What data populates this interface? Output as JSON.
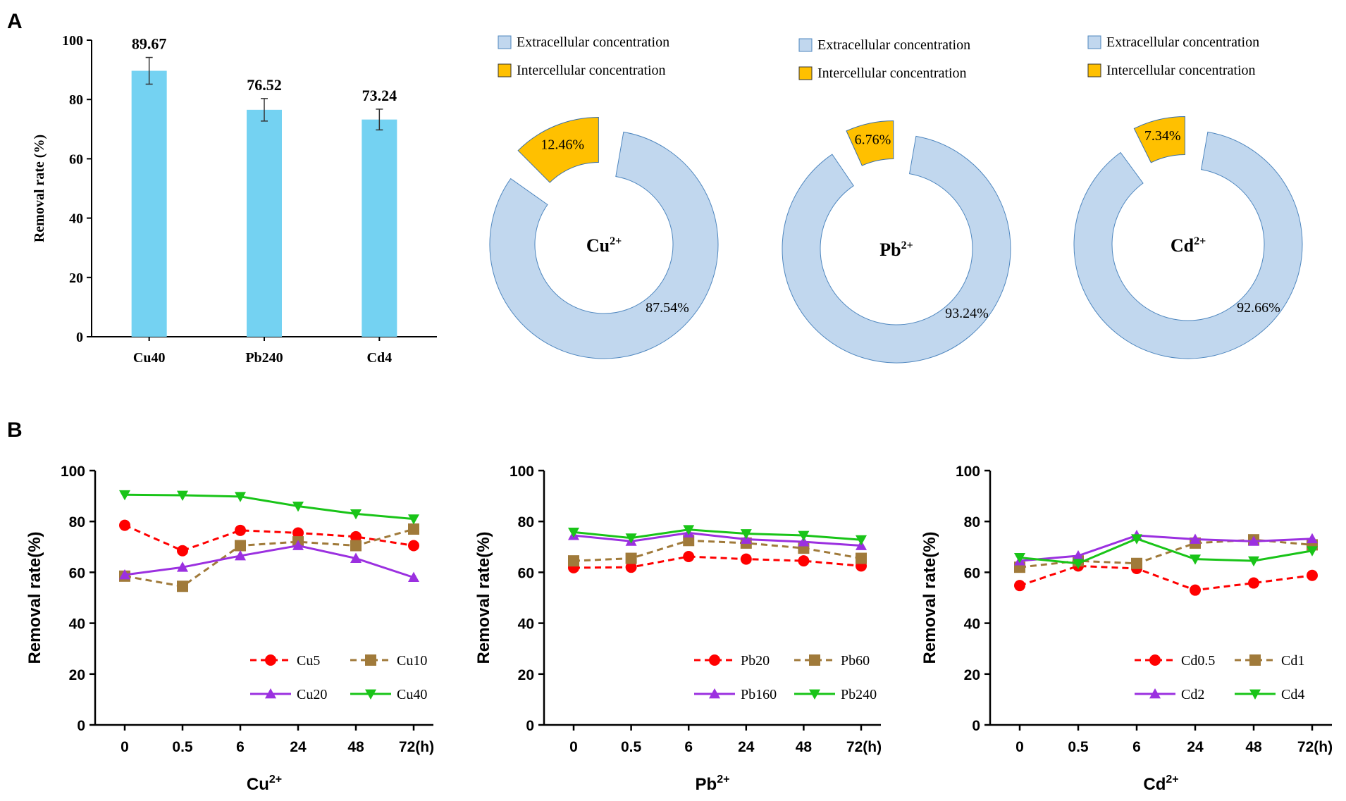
{
  "panel_labels": {
    "a": "A",
    "b": "B"
  },
  "colors": {
    "bar": "#74d2f2",
    "extra": "#c1d7ee",
    "extra_stroke": "#4f87bf",
    "intra": "#ffc000",
    "intra_stroke": "#3a6fa8",
    "red": "#ff0000",
    "brown": "#a07a3a",
    "purple": "#9b30e0",
    "green": "#19c418"
  },
  "chart_data": [
    {
      "id": "bar",
      "type": "bar",
      "categories": [
        "Cu40",
        "Pb240",
        "Cd4"
      ],
      "values": [
        89.67,
        76.52,
        73.24
      ],
      "value_labels": [
        "89.67",
        "76.52",
        "73.24"
      ],
      "errors": [
        4.5,
        3.8,
        3.5
      ],
      "ylabel": "Removal rate (%)",
      "ylim": [
        0,
        100
      ],
      "yticks": [
        "0",
        "20",
        "40",
        "60",
        "80",
        "100"
      ]
    },
    {
      "id": "pie_cu",
      "type": "pie",
      "center_label": "Cu",
      "center_sup": "2+",
      "legend": [
        "Extracellular concentration",
        "Intercellular concentration"
      ],
      "slices": [
        {
          "name": "Extracellular concentration",
          "value": 87.54,
          "label": "87.54%"
        },
        {
          "name": "Intercellular concentration",
          "value": 12.46,
          "label": "12.46%"
        }
      ]
    },
    {
      "id": "pie_pb",
      "type": "pie",
      "center_label": "Pb",
      "center_sup": "2+",
      "legend": [
        "Extracellular concentration",
        "Intercellular concentration"
      ],
      "slices": [
        {
          "name": "Extracellular concentration",
          "value": 93.24,
          "label": "93.24%"
        },
        {
          "name": "Intercellular concentration",
          "value": 6.76,
          "label": "6.76%"
        }
      ]
    },
    {
      "id": "pie_cd",
      "type": "pie",
      "center_label": "Cd",
      "center_sup": "2+",
      "legend": [
        "Extracellular concentration",
        "Intercellular concentration"
      ],
      "slices": [
        {
          "name": "Extracellular concentration",
          "value": 92.66,
          "label": "92.66%"
        },
        {
          "name": "Intercellular concentration",
          "value": 7.34,
          "label": "7.34%"
        }
      ]
    },
    {
      "id": "line_cu",
      "type": "line",
      "categories": [
        "0",
        "0.5",
        "6",
        "24",
        "48",
        "72"
      ],
      "x_unit": "(h)",
      "xlabel": "Cu",
      "xlabel_sup": "2+",
      "ylabel": "Removal rate(%)",
      "ylim": [
        0,
        100
      ],
      "yticks": [
        "0",
        "20",
        "40",
        "60",
        "80",
        "100"
      ],
      "series": [
        {
          "name": "Cu5",
          "values": [
            78.5,
            68.5,
            76.5,
            75.5,
            74,
            70.5
          ],
          "color": "#ff0000",
          "marker": "circle",
          "dashed": true
        },
        {
          "name": "Cu10",
          "values": [
            58.5,
            54.5,
            70.5,
            72,
            70.5,
            77
          ],
          "color": "#a07a3a",
          "marker": "square",
          "dashed": true
        },
        {
          "name": "Cu20",
          "values": [
            59,
            62,
            66.5,
            70.5,
            65.5,
            58
          ],
          "color": "#9b30e0",
          "marker": "triangle-up",
          "dashed": false
        },
        {
          "name": "Cu40",
          "values": [
            90.5,
            90.3,
            89.8,
            86,
            83,
            81
          ],
          "color": "#19c418",
          "marker": "triangle-down",
          "dashed": false
        }
      ]
    },
    {
      "id": "line_pb",
      "type": "line",
      "categories": [
        "0",
        "0.5",
        "6",
        "24",
        "48",
        "72"
      ],
      "x_unit": "(h)",
      "xlabel": "Pb",
      "xlabel_sup": "2+",
      "ylabel": "Removal rate(%)",
      "ylim": [
        0,
        100
      ],
      "yticks": [
        "0",
        "20",
        "40",
        "60",
        "80",
        "100"
      ],
      "series": [
        {
          "name": "Pb20",
          "values": [
            61.8,
            62,
            66.2,
            65.2,
            64.5,
            62.5
          ],
          "color": "#ff0000",
          "marker": "circle",
          "dashed": true
        },
        {
          "name": "Pb60",
          "values": [
            64.5,
            65.5,
            72.5,
            71.5,
            69.5,
            65.5
          ],
          "color": "#a07a3a",
          "marker": "square",
          "dashed": true
        },
        {
          "name": "Pb160",
          "values": [
            74.5,
            72.2,
            75.5,
            73,
            72,
            70.5
          ],
          "color": "#9b30e0",
          "marker": "triangle-up",
          "dashed": false
        },
        {
          "name": "Pb240",
          "values": [
            75.8,
            73.5,
            76.8,
            75.2,
            74.5,
            72.8
          ],
          "color": "#19c418",
          "marker": "triangle-down",
          "dashed": false
        }
      ]
    },
    {
      "id": "line_cd",
      "type": "line",
      "categories": [
        "0",
        "0.5",
        "6",
        "24",
        "48",
        "72"
      ],
      "x_unit": "(h)",
      "xlabel": "Cd",
      "xlabel_sup": "2+",
      "ylabel": "Removal rate(%)",
      "ylim": [
        0,
        100
      ],
      "yticks": [
        "0",
        "20",
        "40",
        "60",
        "80",
        "100"
      ],
      "series": [
        {
          "name": "Cd0.5",
          "values": [
            54.8,
            62.5,
            61.5,
            53,
            55.8,
            58.8
          ],
          "color": "#ff0000",
          "marker": "circle",
          "dashed": true
        },
        {
          "name": "Cd1",
          "values": [
            62,
            64.5,
            63.5,
            71.5,
            72.8,
            70.8
          ],
          "color": "#a07a3a",
          "marker": "square",
          "dashed": true
        },
        {
          "name": "Cd2",
          "values": [
            64.5,
            66.5,
            74.5,
            73,
            72.2,
            73.2
          ],
          "color": "#9b30e0",
          "marker": "triangle-up",
          "dashed": false
        },
        {
          "name": "Cd4",
          "values": [
            65.8,
            63.5,
            73.2,
            65.2,
            64.5,
            68.5
          ],
          "color": "#19c418",
          "marker": "triangle-down",
          "dashed": false
        }
      ]
    }
  ]
}
